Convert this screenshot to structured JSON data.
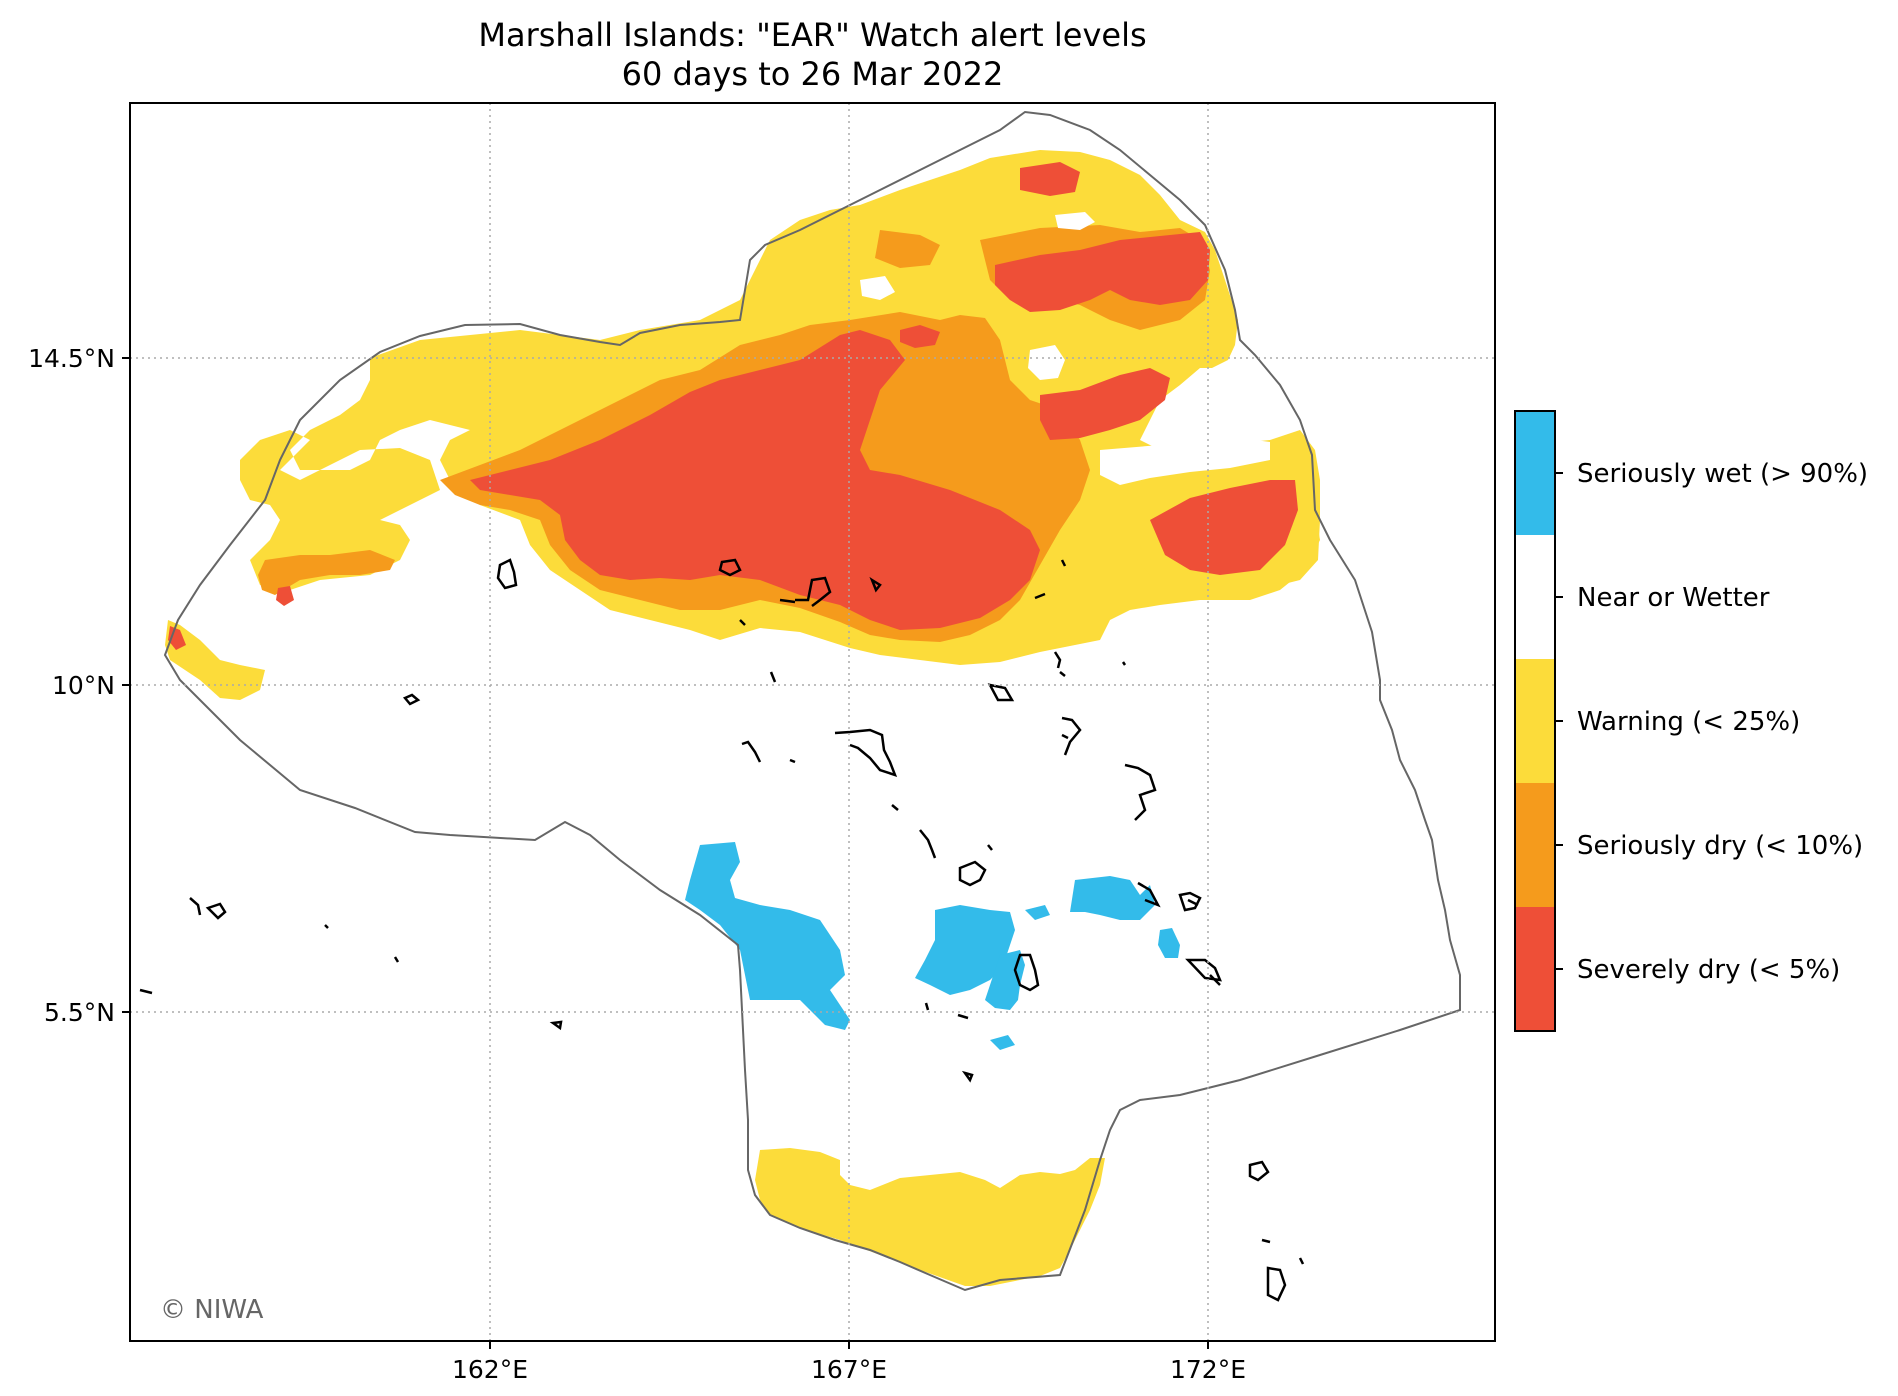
{
  "title": {
    "line1": "Marshall Islands: \"EAR\" Watch alert levels",
    "line2": "60 days to 26 Mar 2022"
  },
  "axes": {
    "lat_ticks": [
      "14.5°N",
      "10°N",
      "5.5°N"
    ],
    "lon_ticks": [
      "162°E",
      "167°E",
      "172°E"
    ]
  },
  "legend": [
    {
      "label": "Seriously wet (> 90%)",
      "color": "#33bbea"
    },
    {
      "label": "Near or Wetter",
      "color": "#ffffff"
    },
    {
      "label": "Warning (< 25%)",
      "color": "#fcdc3a"
    },
    {
      "label": "Seriously dry (< 10%)",
      "color": "#f59b1c"
    },
    {
      "label": "Severely dry (< 5%)",
      "color": "#ee4f37"
    }
  ],
  "credit": "© NIWA",
  "colors": {
    "severe": "#ee4f37",
    "serious_dry": "#f59b1c",
    "warning": "#fcdc3a",
    "wet": "#33bbea",
    "eez_outline": "#666666",
    "grid": "#aaaaaa"
  }
}
